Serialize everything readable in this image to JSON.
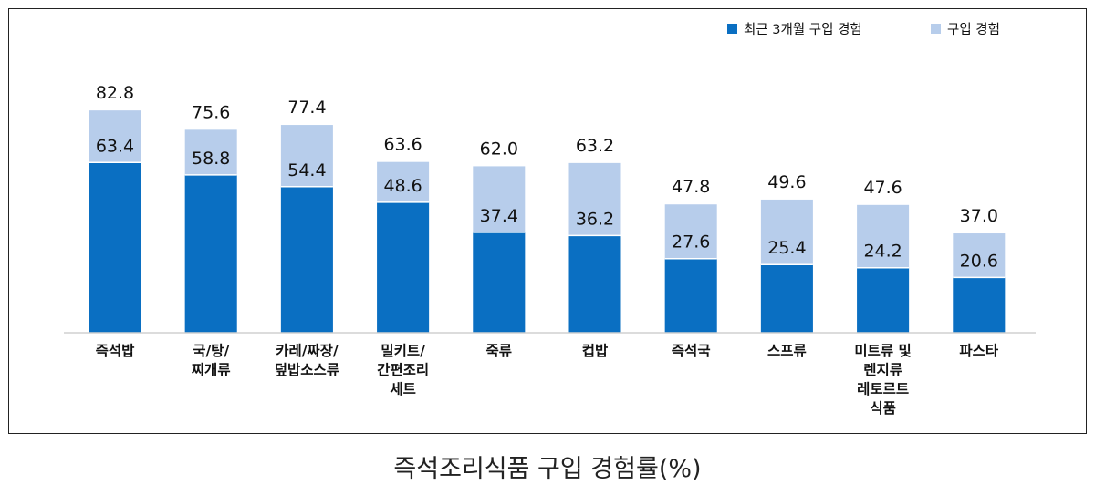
{
  "chart_data": {
    "type": "bar",
    "stacked": false,
    "overlapping": true,
    "categories": [
      [
        "즉석밥"
      ],
      [
        "국/탕/",
        "찌개류"
      ],
      [
        "카레/짜장/",
        "덮밥소스류"
      ],
      [
        "밀키트/",
        "간편조리",
        "세트"
      ],
      [
        "죽류"
      ],
      [
        "컵밥"
      ],
      [
        "즉석국"
      ],
      [
        "스프류"
      ],
      [
        "미트류 및",
        "렌지류",
        "레토르트",
        "식품"
      ],
      [
        "파스타"
      ]
    ],
    "series": [
      {
        "name": "최근 3개월 구입 경험",
        "color": "#0a6fc2",
        "values": [
          63.4,
          58.8,
          54.4,
          48.6,
          37.4,
          36.2,
          27.6,
          25.4,
          24.2,
          20.6
        ],
        "labels": [
          "63.4",
          "58.8",
          "54.4",
          "48.6",
          "37.4",
          "36.2",
          "27.6",
          "25.4",
          "24.2",
          "20.6"
        ]
      },
      {
        "name": "구입 경험",
        "color": "#b7cdeb",
        "values": [
          82.8,
          75.6,
          77.4,
          63.6,
          62.0,
          63.2,
          47.8,
          49.6,
          47.6,
          37.0
        ],
        "labels": [
          "82.8",
          "75.6",
          "77.4",
          "63.6",
          "62.0",
          "63.2",
          "47.8",
          "49.6",
          "47.6",
          "37.0"
        ]
      }
    ],
    "ylim": [
      0,
      100
    ],
    "grid": false,
    "legend_position": "top-right",
    "xlabel": "",
    "ylabel": ""
  },
  "caption": "즉석조리식품 구입 경험률(%)"
}
